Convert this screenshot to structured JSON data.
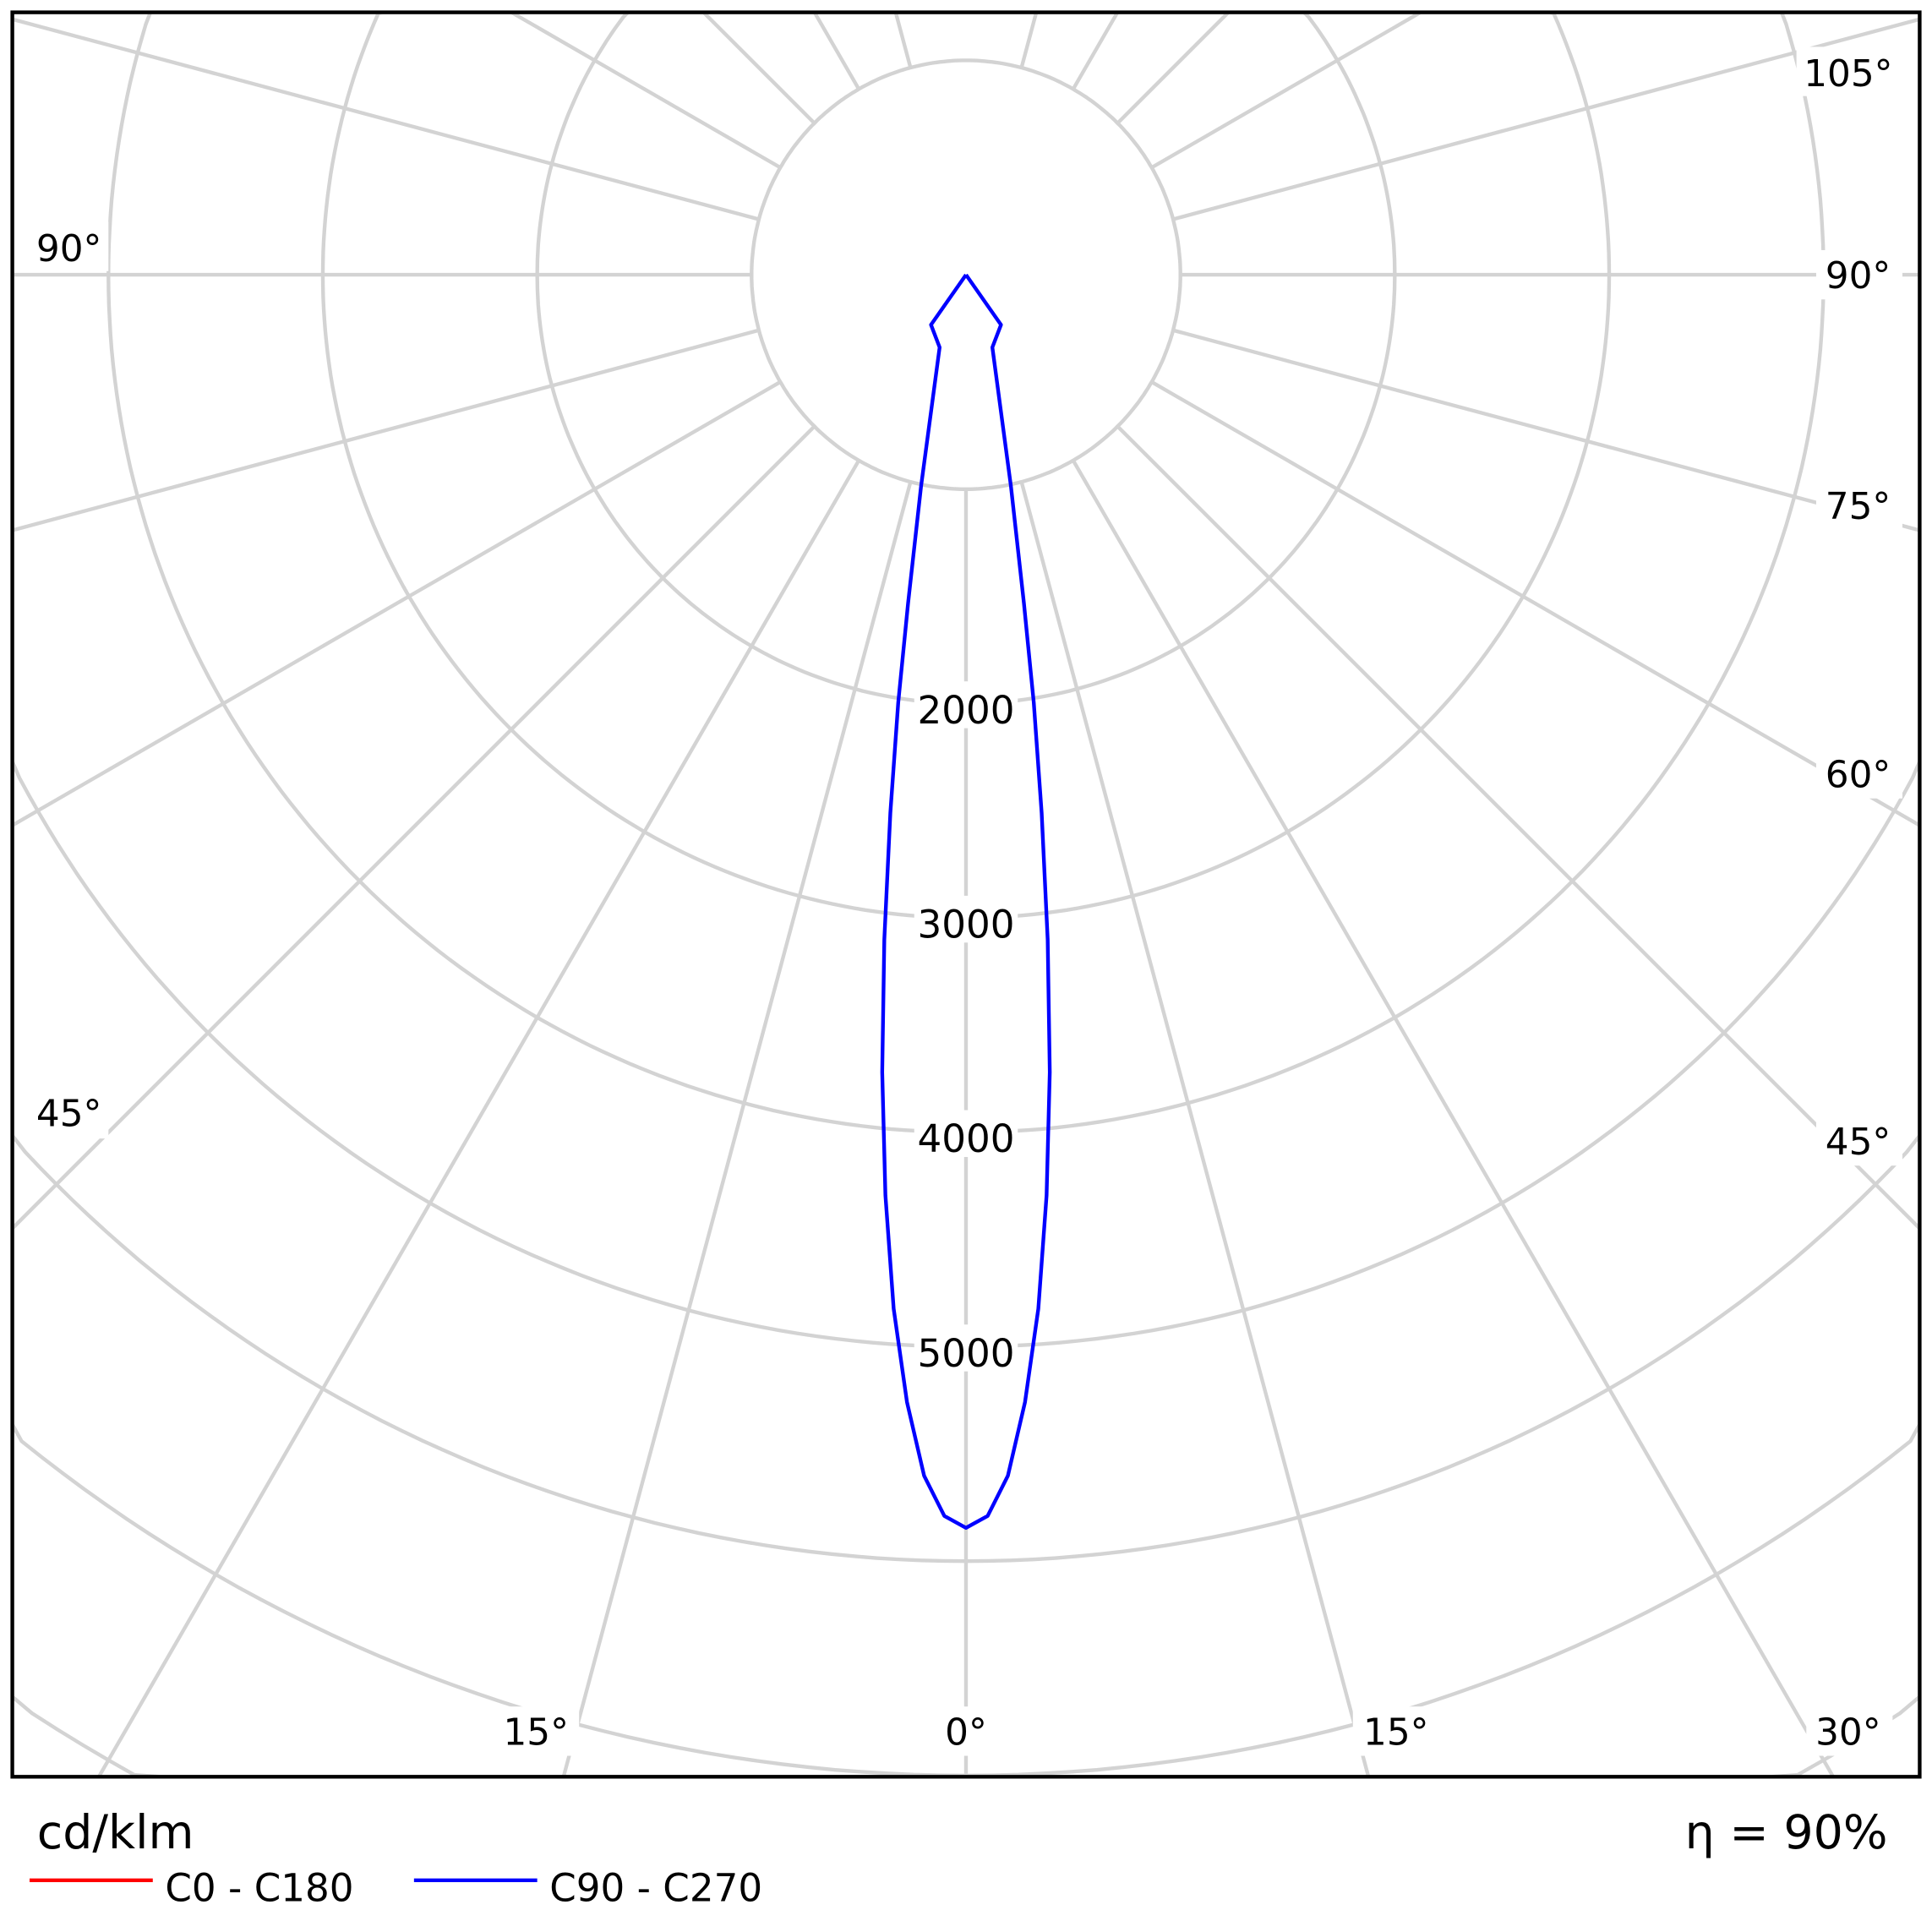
{
  "chart_data": {
    "type": "polar",
    "unit_label": "cd/klm",
    "efficiency_label": "η = 90%",
    "radial_ticks": [
      2000,
      3000,
      4000,
      5000
    ],
    "radial_tick_labels": [
      "2000",
      "3000",
      "4000",
      "5000"
    ],
    "ring_step": 1000,
    "spoke_step_deg": 15,
    "grid": true,
    "grid_color": "#d3d3d3",
    "angle_labels": {
      "left_90": "90°",
      "left_45": "45°",
      "right_105": "105°",
      "right_90": "90°",
      "right_75": "75°",
      "right_60": "60°",
      "right_45": "45°",
      "right_30": "30°",
      "bottom_15_left": "15°",
      "bottom_0": "0°",
      "bottom_15_right": "15°"
    },
    "legend_placement": "bottom-left",
    "series": [
      {
        "name": "C0 - C180",
        "color": "#ff0000",
        "gamma": [],
        "values": []
      },
      {
        "name": "C90 - C270",
        "color": "#0000ff",
        "gamma": [
          0,
          1,
          2,
          3,
          4,
          5,
          6,
          7,
          8,
          9,
          10,
          12,
          20,
          35,
          90
        ],
        "values": [
          5845,
          5790,
          5605,
          5265,
          4835,
          4310,
          3740,
          3125,
          2535,
          2020,
          1555,
          1010,
          360,
          285,
          0
        ]
      }
    ]
  }
}
